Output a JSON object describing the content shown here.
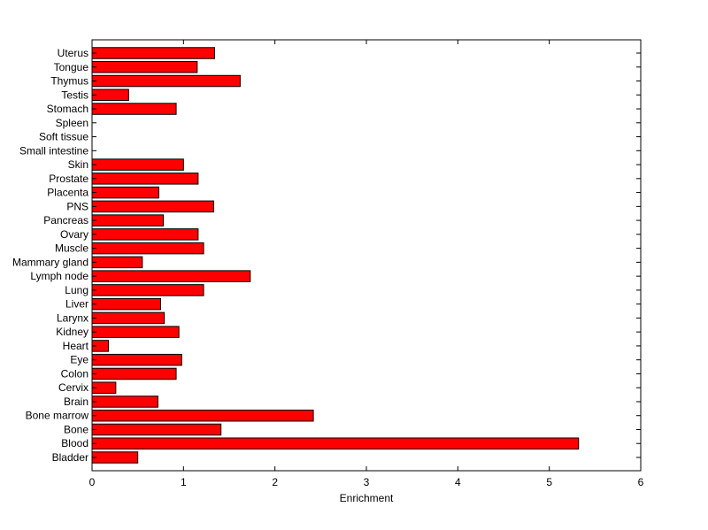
{
  "chart_data": {
    "type": "bar",
    "orientation": "horizontal",
    "title": "",
    "xlabel": "Enrichment",
    "ylabel": "",
    "xlim": [
      0,
      6
    ],
    "xticks": [
      "0",
      "1",
      "2",
      "3",
      "4",
      "5",
      "6"
    ],
    "grid": false,
    "bar_color": "#ff0000",
    "bar_edge_color": "#000000",
    "categories": [
      "Bladder",
      "Blood",
      "Bone",
      "Bone marrow",
      "Brain",
      "Cervix",
      "Colon",
      "Eye",
      "Heart",
      "Kidney",
      "Larynx",
      "Liver",
      "Lung",
      "Lymph node",
      "Mammary gland",
      "Muscle",
      "Ovary",
      "Pancreas",
      "PNS",
      "Placenta",
      "Prostate",
      "Skin",
      "Small intestine",
      "Soft tissue",
      "Spleen",
      "Stomach",
      "Testis",
      "Thymus",
      "Tongue",
      "Uterus"
    ],
    "values": [
      0.5,
      5.32,
      1.41,
      2.42,
      0.72,
      0.26,
      0.92,
      0.98,
      0.18,
      0.95,
      0.79,
      0.75,
      1.22,
      1.73,
      0.55,
      1.22,
      1.16,
      0.78,
      1.33,
      0.73,
      1.16,
      1.0,
      0,
      0,
      0,
      0.92,
      0.4,
      1.62,
      1.15,
      1.34
    ]
  }
}
